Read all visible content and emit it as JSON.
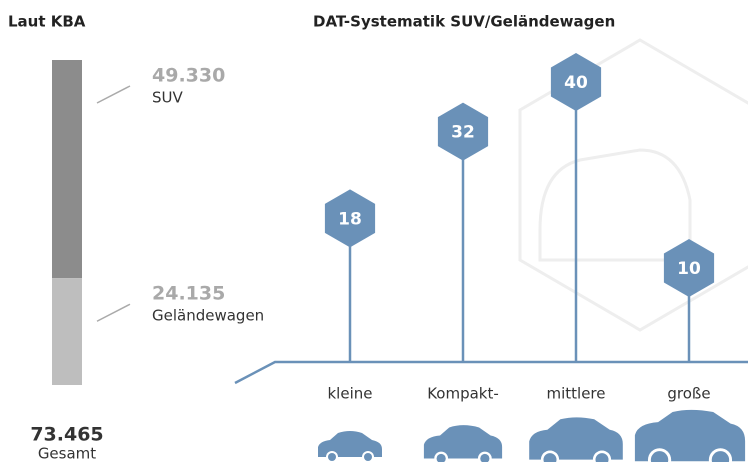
{
  "chart_data": [
    {
      "type": "stacked-bar",
      "title": "Laut KBA",
      "series": [
        {
          "name": "SUV",
          "color": "#8c8c8c",
          "values": [
            49330
          ],
          "value_labels": [
            "49.330"
          ]
        },
        {
          "name": "Geländewagen",
          "color": "#bebebe",
          "values": [
            24135
          ],
          "value_labels": [
            "24.135"
          ]
        }
      ],
      "total": {
        "value": 73465,
        "label": "73.465",
        "name": "Gesamt"
      }
    },
    {
      "type": "lollipop",
      "title": "DAT-Systematik SUV/Geländewagen",
      "categories": [
        "kleine",
        "Kompakt-",
        "mittlere",
        "große"
      ],
      "values": [
        18,
        32,
        40,
        10
      ],
      "color": "#6a91b8"
    }
  ]
}
